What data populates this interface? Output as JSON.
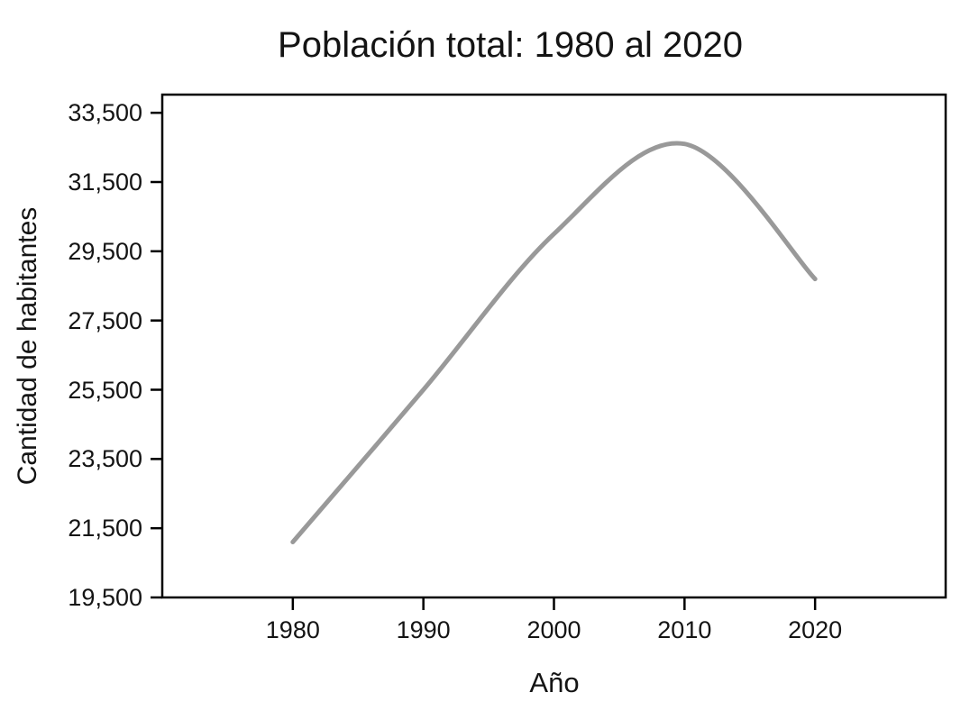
{
  "chart_data": {
    "type": "line",
    "title": "Población total: 1980 al 2020",
    "xlabel": "Año",
    "ylabel": "Cantidad de habitantes",
    "x": [
      1980,
      1990,
      2000,
      2010,
      2020
    ],
    "series": [
      {
        "name": "Población total",
        "values": [
          21100,
          25500,
          30000,
          32600,
          28700
        ]
      }
    ],
    "smooth": true,
    "peak": {
      "year": 2009,
      "value": 32700
    },
    "x_ticks": [
      {
        "value": 1980,
        "label": "1980"
      },
      {
        "value": 1990,
        "label": "1990"
      },
      {
        "value": 2000,
        "label": "2000"
      },
      {
        "value": 2010,
        "label": "2010"
      },
      {
        "value": 2020,
        "label": "2020"
      }
    ],
    "y_ticks": [
      {
        "value": 19500,
        "label": "19,500"
      },
      {
        "value": 21500,
        "label": "21,500"
      },
      {
        "value": 23500,
        "label": "23,500"
      },
      {
        "value": 25500,
        "label": "25,500"
      },
      {
        "value": 27500,
        "label": "27,500"
      },
      {
        "value": 29500,
        "label": "29,500"
      },
      {
        "value": 31500,
        "label": "31,500"
      },
      {
        "value": 33500,
        "label": "33,500"
      }
    ],
    "xlim": [
      1970,
      2030
    ],
    "ylim": [
      19500,
      34025
    ],
    "grid": false,
    "legend": "none",
    "line_color": "#999999",
    "axis_color": "#000000",
    "text_color": "#141414",
    "background_color": "#ffffff"
  }
}
